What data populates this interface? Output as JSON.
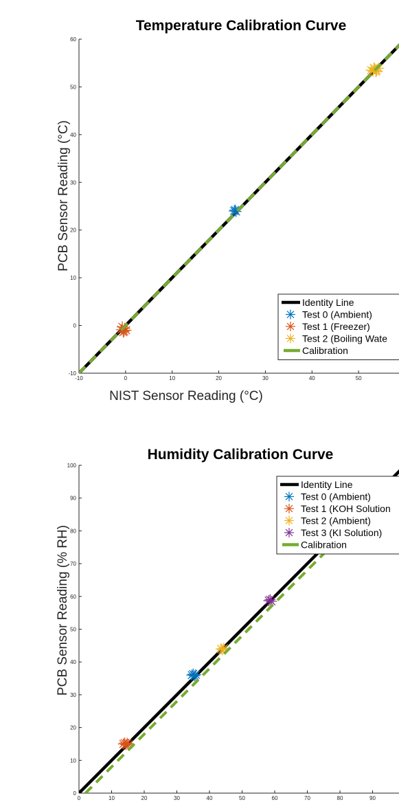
{
  "chart_data": [
    {
      "type": "scatter",
      "title": "Temperature Calibration Curve",
      "xlabel": "NIST Sensor Reading (°C)",
      "ylabel": "PCB Sensor Reading (°C)",
      "xlim": [
        -10,
        60
      ],
      "ylim": [
        -10,
        60
      ],
      "xticks": [
        -10,
        0,
        10,
        20,
        30,
        40,
        50
      ],
      "yticks": [
        -10,
        0,
        10,
        20,
        30,
        40,
        50,
        60
      ],
      "xtick_labels": [
        "-10",
        "0",
        "10",
        "20",
        "30",
        "40",
        "50"
      ],
      "ytick_labels": [
        "-10",
        "0",
        "10",
        "20",
        "30",
        "40",
        "50",
        "60"
      ],
      "grid": false,
      "legend_position": "bottom-right",
      "series": [
        {
          "name": "Identity Line",
          "kind": "line",
          "color": "#000000",
          "x": [
            -10,
            60
          ],
          "y": [
            -10,
            60
          ]
        },
        {
          "name": "Test 0 (Ambient)",
          "kind": "markers",
          "marker": "asterisk",
          "color": "#0072BD",
          "x": [
            23.3,
            23.5,
            23.7
          ],
          "y": [
            24.0,
            24.2,
            23.9
          ]
        },
        {
          "name": "Test 1 (Freezer)",
          "kind": "markers",
          "marker": "asterisk",
          "color": "#D95319",
          "x": [
            -0.9,
            -0.5,
            -0.2,
            0.1,
            -0.7,
            -0.3
          ],
          "y": [
            -0.9,
            -1.4,
            -0.6,
            -1.0,
            -0.3,
            -1.2
          ]
        },
        {
          "name": "Test 2 (Boiling Wate",
          "kind": "markers",
          "marker": "asterisk",
          "color": "#EDB120",
          "x": [
            52.7,
            53.1,
            53.5,
            53.9,
            54.3,
            53.3,
            53.7
          ],
          "y": [
            53.5,
            53.3,
            53.8,
            53.4,
            53.9,
            54.0,
            53.2
          ]
        },
        {
          "name": "Calibration",
          "kind": "line",
          "dashed": true,
          "color": "#77AC30",
          "x": [
            -10,
            60
          ],
          "y": [
            -10,
            60
          ]
        }
      ]
    },
    {
      "type": "scatter",
      "title": "Humidity Calibration Curve",
      "xlabel": "",
      "ylabel": "PCB Sensor Reading (% RH)",
      "xlim": [
        0,
        100
      ],
      "ylim": [
        0,
        100
      ],
      "xticks": [
        0,
        10,
        20,
        30,
        40,
        50,
        60,
        70,
        80,
        90
      ],
      "yticks": [
        0,
        10,
        20,
        30,
        40,
        50,
        60,
        70,
        80,
        90,
        100
      ],
      "xtick_labels": [
        "0",
        "10",
        "20",
        "30",
        "40",
        "50",
        "60",
        "70",
        "80",
        "90"
      ],
      "ytick_labels": [
        "0",
        "10",
        "20",
        "30",
        "40",
        "50",
        "60",
        "70",
        "80",
        "90",
        "100"
      ],
      "grid": false,
      "legend_position": "bottom-right",
      "series": [
        {
          "name": "Identity Line",
          "kind": "line",
          "color": "#000000",
          "x": [
            0,
            100
          ],
          "y": [
            0,
            100
          ]
        },
        {
          "name": "Test 0 (Ambient)",
          "kind": "markers",
          "marker": "asterisk",
          "color": "#0072BD",
          "x": [
            34.6,
            35.0,
            35.4,
            35.8
          ],
          "y": [
            36.0,
            36.3,
            35.8,
            36.1
          ]
        },
        {
          "name": "Test 1 (KOH Solution",
          "kind": "markers",
          "marker": "asterisk",
          "color": "#D95319",
          "x": [
            13.6,
            14.0,
            14.4,
            14.8,
            15.2
          ],
          "y": [
            15.0,
            15.3,
            14.8,
            15.2,
            14.9
          ]
        },
        {
          "name": "Test 2 (Ambient)",
          "kind": "markers",
          "marker": "asterisk",
          "color": "#EDB120",
          "x": [
            43.6,
            44.0,
            44.4
          ],
          "y": [
            44.0,
            43.7,
            44.2
          ]
        },
        {
          "name": "Test 3 (KI Solution)",
          "kind": "markers",
          "marker": "asterisk",
          "color": "#7E2F8E",
          "x": [
            58.2,
            58.6,
            59.0
          ],
          "y": [
            58.7,
            59.0,
            58.5
          ]
        },
        {
          "name": "Calibration",
          "kind": "line",
          "dashed": true,
          "color": "#77AC30",
          "x": [
            2.0,
            100
          ],
          "y": [
            0,
            98.0
          ]
        }
      ]
    }
  ]
}
